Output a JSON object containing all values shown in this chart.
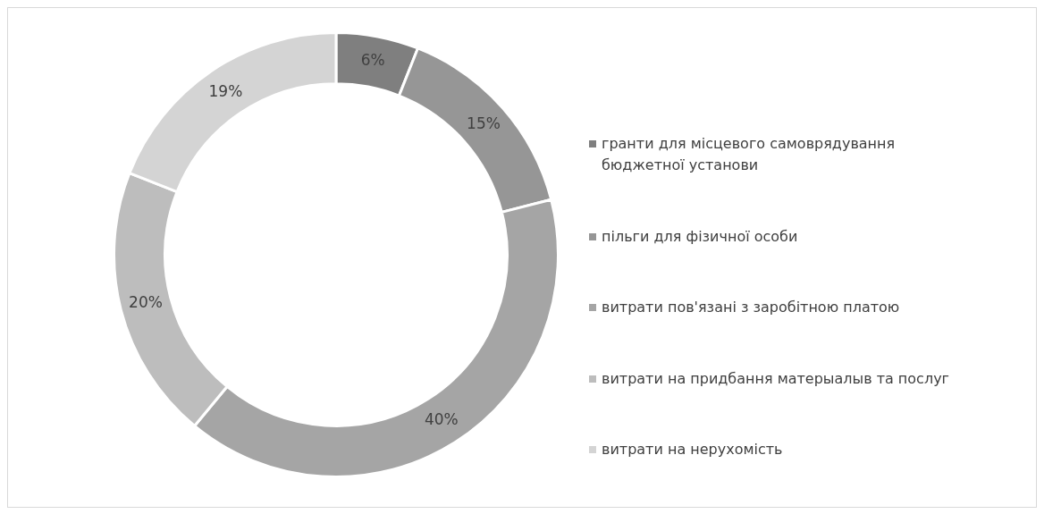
{
  "chart_data": {
    "type": "donut",
    "categories": [
      "гранти для місцевого самоврядування бюджетної установи",
      "пільги для фізичної особи",
      "витрати пов'язані з заробітною платою",
      "витрати на придбання матерыалыв та послуг",
      "витрати на нерухомість"
    ],
    "values": [
      6,
      15,
      40,
      20,
      19
    ],
    "colors": [
      "#7f7f7f",
      "#969696",
      "#a5a5a5",
      "#bdbdbd",
      "#d4d4d4"
    ],
    "value_labels": [
      "6%",
      "15%",
      "40%",
      "20%",
      "19%"
    ],
    "legend": "right"
  }
}
